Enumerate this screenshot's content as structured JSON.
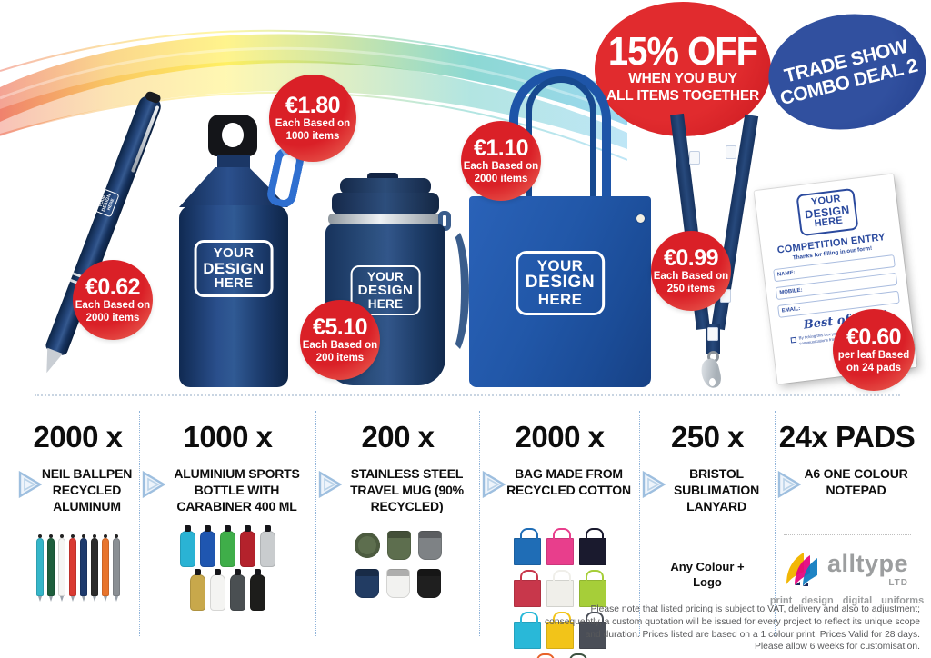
{
  "badges": {
    "discount": {
      "line1": "15% OFF",
      "line2": "WHEN YOU BUY",
      "line3": "ALL ITEMS TOGETHER"
    },
    "deal": {
      "line1": "TRADE SHOW",
      "line2": "COMBO DEAL 2"
    }
  },
  "design_logo": {
    "line1": "YOUR",
    "line2": "DESIGN",
    "line3": "HERE"
  },
  "prices": {
    "pen": {
      "price": "€0.62",
      "sub1": "Each Based on",
      "sub2": "2000 items"
    },
    "bottle": {
      "price": "€1.80",
      "sub1": "Each Based on",
      "sub2": "1000 items"
    },
    "mug": {
      "price": "€5.10",
      "sub1": "Each Based on",
      "sub2": "200 items"
    },
    "bag": {
      "price": "€1.10",
      "sub1": "Each Based on",
      "sub2": "2000 items"
    },
    "lanyard": {
      "price": "€0.99",
      "sub1": "Each Based on",
      "sub2": "250 items"
    },
    "notepad": {
      "price": "€0.60",
      "sub1": "per leaf Based",
      "sub2": "on 24 pads"
    }
  },
  "notepad_card": {
    "title": "COMPETITION ENTRY",
    "subtitle": "Thanks for filling in our form!",
    "fields": [
      "NAME:",
      "MOBILE:",
      "EMAIL:"
    ],
    "script_text": "Best of luck!",
    "consent_line1": "By ticking this box you agree to receive",
    "consent_line2": "communications from us"
  },
  "columns": [
    {
      "qty": "2000 x",
      "name": "NEIL BALLPEN RECYCLED ALUMINUM"
    },
    {
      "qty": "1000 x",
      "name": "ALUMINIUM SPORTS BOTTLE WITH CARABINER 400 ML"
    },
    {
      "qty": "200 x",
      "name": "STAINLESS STEEL TRAVEL MUG (90% RECYCLED)"
    },
    {
      "qty": "2000 x",
      "name": "BAG MADE FROM RECYCLED COTTON"
    },
    {
      "qty": "250 x",
      "name": "BRISTOL SUBLIMATION LANYARD",
      "extra": "Any Colour + Logo"
    },
    {
      "qty": "24x PADS",
      "name": "A6 ONE COLOUR NOTEPAD"
    }
  ],
  "brand": {
    "name": "alltype",
    "suffix": "LTD",
    "services": [
      "print",
      "design",
      "digital",
      "uniforms"
    ]
  },
  "fineprint": {
    "line1": "Please note that listed pricing is subject to VAT, delivery and also to adjustment;",
    "line2": "consequently, a custom quotation will be issued for every project to reflect its unique scope",
    "line3": "and duration. Prices listed are based on a 1 colour print. Prices Valid for 28 days.",
    "line4": "Please allow 6 weeks for customisation."
  },
  "colors": {
    "bubble_red": "#d71f27",
    "badge_blue": "#2b4a9e",
    "product_navy": "#1d3a6d",
    "bag_blue": "#2157a8"
  },
  "swatches": {
    "pens": [
      "#35b6c9",
      "#1d5e3c",
      "#f5f5f3",
      "#d93a32",
      "#1d3a6d",
      "#2b2b2b",
      "#e8742c",
      "#8a8f94"
    ],
    "bottles_row1": [
      "#2ab3d4",
      "#1f56b0",
      "#3fae49",
      "#b4222c",
      "#c9ccce"
    ],
    "bottles_row2": [
      "#c8a84b",
      "#f4f4f2",
      "#4a4f52",
      "#1d1d1b"
    ],
    "mugs_row1": [
      "#5d6e4e",
      "#7e8285"
    ],
    "mugs_row2": [
      "#223c63",
      "#f2f2f0",
      "#1f1f1f"
    ],
    "bags": [
      "#1f6db6",
      "#e83e8c",
      "#1a1a2e",
      "#c8374b",
      "#f0efea",
      "#a6ce39",
      "#29b8d8",
      "#f2c419",
      "#4a4e57",
      "#e8632a",
      "#3d5241"
    ]
  }
}
